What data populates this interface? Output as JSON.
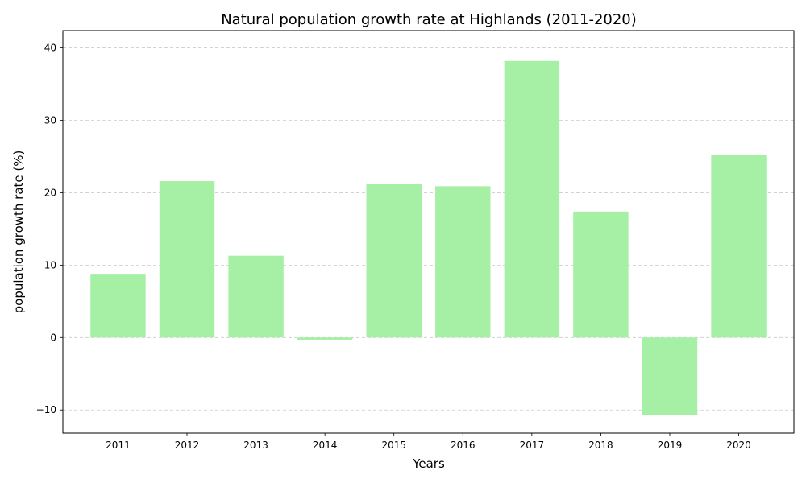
{
  "chart_data": {
    "type": "bar",
    "title": "Natural population growth rate at Highlands (2011-2020)",
    "xlabel": "Years",
    "ylabel": "population growth rate (%)",
    "categories": [
      "2011",
      "2012",
      "2013",
      "2014",
      "2015",
      "2016",
      "2017",
      "2018",
      "2019",
      "2020"
    ],
    "values": [
      8.8,
      21.6,
      11.3,
      -0.3,
      21.2,
      20.9,
      38.2,
      17.4,
      -10.7,
      25.2
    ],
    "ylim": [
      -13.2,
      42.4
    ],
    "yticks": [
      -10,
      0,
      10,
      20,
      30,
      40
    ],
    "ytick_labels": [
      "−10",
      "0",
      "10",
      "20",
      "30",
      "40"
    ],
    "grid": "horizontal dashed",
    "colors": {
      "bar": "#a6f0a6",
      "grid": "#cccccc",
      "axis": "#000000"
    }
  }
}
